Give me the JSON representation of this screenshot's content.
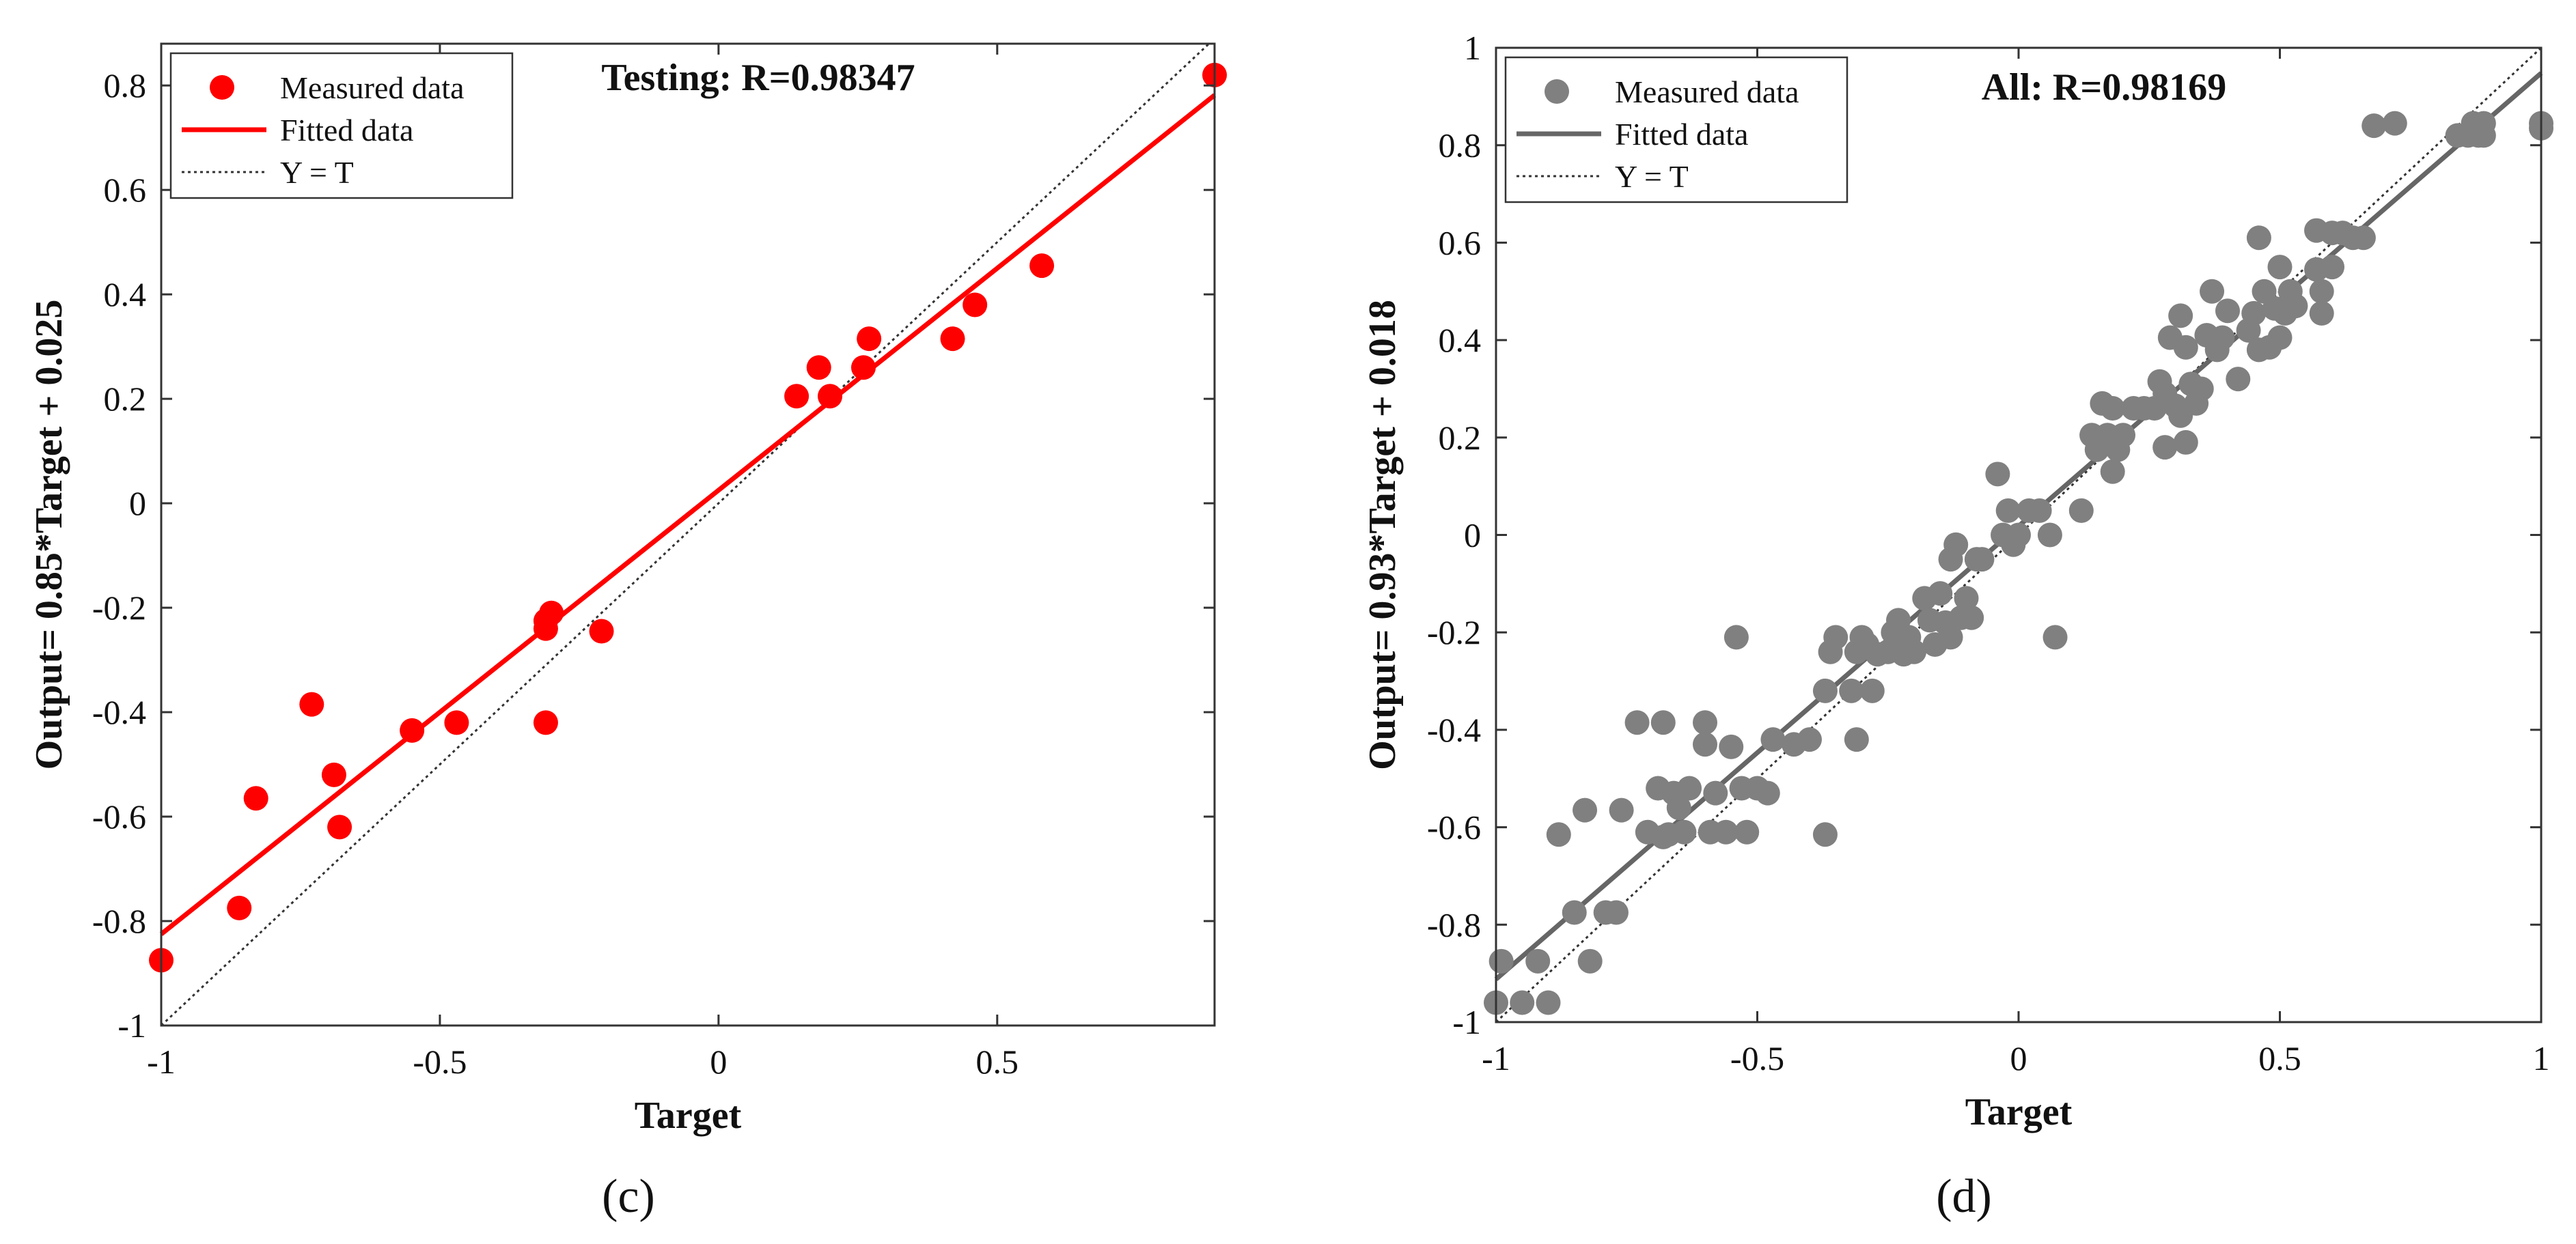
{
  "chart_data": [
    {
      "type": "scatter",
      "panel_label": "(c)",
      "title": "Testing: R=0.98347",
      "xlabel": "Target",
      "ylabel": "Output= 0.85*Target + 0.025",
      "xlim": [
        -1,
        0.89
      ],
      "ylim": [
        -1,
        0.88
      ],
      "xticks": [
        -1,
        -0.5,
        0,
        0.5
      ],
      "yticks": [
        -1,
        -0.8,
        -0.6,
        -0.4,
        -0.2,
        0,
        0.2,
        0.4,
        0.6,
        0.8
      ],
      "grid": false,
      "legend_position": "top-left",
      "colors": {
        "points": "#ff0000",
        "fit": "#ff0000",
        "identity": "#333333"
      },
      "legend": [
        "Measured data",
        "Fitted data",
        "Y = T"
      ],
      "fit": {
        "slope": 0.85,
        "intercept": 0.025
      },
      "points": [
        [
          -1.0,
          -0.875
        ],
        [
          -0.86,
          -0.775
        ],
        [
          -0.83,
          -0.565
        ],
        [
          -0.73,
          -0.385
        ],
        [
          -0.69,
          -0.52
        ],
        [
          -0.68,
          -0.62
        ],
        [
          -0.55,
          -0.435
        ],
        [
          -0.47,
          -0.42
        ],
        [
          -0.31,
          -0.24
        ],
        [
          -0.31,
          -0.225
        ],
        [
          -0.3,
          -0.21
        ],
        [
          -0.31,
          -0.42
        ],
        [
          -0.21,
          -0.245
        ],
        [
          0.14,
          0.205
        ],
        [
          0.18,
          0.26
        ],
        [
          0.2,
          0.205
        ],
        [
          0.26,
          0.26
        ],
        [
          0.27,
          0.315
        ],
        [
          0.42,
          0.315
        ],
        [
          0.46,
          0.38
        ],
        [
          0.58,
          0.455
        ],
        [
          0.89,
          0.82
        ]
      ]
    },
    {
      "type": "scatter",
      "panel_label": "(d)",
      "title": "All: R=0.98169",
      "xlabel": "Target",
      "ylabel": "Output= 0.93*Target + 0.018",
      "xlim": [
        -1,
        1
      ],
      "ylim": [
        -1,
        1
      ],
      "xticks": [
        -1,
        -0.5,
        0,
        0.5,
        1
      ],
      "yticks": [
        -1,
        -0.8,
        -0.6,
        -0.4,
        -0.2,
        0,
        0.2,
        0.4,
        0.6,
        0.8,
        1
      ],
      "grid": false,
      "legend_position": "top-left",
      "colors": {
        "points": "#808080",
        "fit": "#666666",
        "identity": "#333333"
      },
      "legend": [
        "Measured data",
        "Fitted data",
        "Y = T"
      ],
      "fit": {
        "slope": 0.93,
        "intercept": 0.018
      },
      "points": [
        [
          -1.0,
          -0.96
        ],
        [
          -0.99,
          -0.875
        ],
        [
          -0.95,
          -0.96
        ],
        [
          -0.92,
          -0.875
        ],
        [
          -0.9,
          -0.96
        ],
        [
          -0.88,
          -0.615
        ],
        [
          -0.85,
          -0.775
        ],
        [
          -0.83,
          -0.565
        ],
        [
          -0.82,
          -0.875
        ],
        [
          -0.79,
          -0.775
        ],
        [
          -0.77,
          -0.775
        ],
        [
          -0.76,
          -0.565
        ],
        [
          -0.73,
          -0.385
        ],
        [
          -0.71,
          -0.61
        ],
        [
          -0.69,
          -0.52
        ],
        [
          -0.68,
          -0.385
        ],
        [
          -0.68,
          -0.62
        ],
        [
          -0.67,
          -0.615
        ],
        [
          -0.66,
          -0.53
        ],
        [
          -0.65,
          -0.56
        ],
        [
          -0.64,
          -0.61
        ],
        [
          -0.63,
          -0.52
        ],
        [
          -0.6,
          -0.43
        ],
        [
          -0.6,
          -0.385
        ],
        [
          -0.59,
          -0.61
        ],
        [
          -0.58,
          -0.53
        ],
        [
          -0.56,
          -0.61
        ],
        [
          -0.55,
          -0.435
        ],
        [
          -0.54,
          -0.21
        ],
        [
          -0.53,
          -0.52
        ],
        [
          -0.52,
          -0.61
        ],
        [
          -0.5,
          -0.52
        ],
        [
          -0.48,
          -0.53
        ],
        [
          -0.47,
          -0.42
        ],
        [
          -0.43,
          -0.43
        ],
        [
          -0.4,
          -0.42
        ],
        [
          -0.37,
          -0.615
        ],
        [
          -0.37,
          -0.32
        ],
        [
          -0.36,
          -0.24
        ],
        [
          -0.35,
          -0.21
        ],
        [
          -0.32,
          -0.32
        ],
        [
          -0.31,
          -0.24
        ],
        [
          -0.31,
          -0.42
        ],
        [
          -0.3,
          -0.21
        ],
        [
          -0.29,
          -0.225
        ],
        [
          -0.28,
          -0.32
        ],
        [
          -0.27,
          -0.245
        ],
        [
          -0.25,
          -0.24
        ],
        [
          -0.24,
          -0.2
        ],
        [
          -0.23,
          -0.175
        ],
        [
          -0.22,
          -0.245
        ],
        [
          -0.21,
          -0.21
        ],
        [
          -0.2,
          -0.24
        ],
        [
          -0.18,
          -0.13
        ],
        [
          -0.17,
          -0.175
        ],
        [
          -0.16,
          -0.225
        ],
        [
          -0.15,
          -0.12
        ],
        [
          -0.14,
          -0.18
        ],
        [
          -0.13,
          -0.05
        ],
        [
          -0.13,
          -0.21
        ],
        [
          -0.12,
          -0.02
        ],
        [
          -0.11,
          -0.17
        ],
        [
          -0.1,
          -0.13
        ],
        [
          -0.09,
          -0.17
        ],
        [
          -0.08,
          -0.05
        ],
        [
          -0.07,
          -0.05
        ],
        [
          -0.04,
          0.125
        ],
        [
          -0.03,
          0.0
        ],
        [
          -0.02,
          0.05
        ],
        [
          -0.01,
          -0.02
        ],
        [
          0.0,
          0.0
        ],
        [
          0.02,
          0.05
        ],
        [
          0.04,
          0.05
        ],
        [
          0.06,
          0.0
        ],
        [
          0.07,
          -0.21
        ],
        [
          0.12,
          0.05
        ],
        [
          0.14,
          0.205
        ],
        [
          0.15,
          0.175
        ],
        [
          0.16,
          0.27
        ],
        [
          0.17,
          0.205
        ],
        [
          0.18,
          0.26
        ],
        [
          0.18,
          0.13
        ],
        [
          0.19,
          0.175
        ],
        [
          0.2,
          0.205
        ],
        [
          0.22,
          0.26
        ],
        [
          0.24,
          0.26
        ],
        [
          0.26,
          0.26
        ],
        [
          0.27,
          0.315
        ],
        [
          0.28,
          0.18
        ],
        [
          0.28,
          0.29
        ],
        [
          0.29,
          0.405
        ],
        [
          0.3,
          0.265
        ],
        [
          0.31,
          0.245
        ],
        [
          0.31,
          0.45
        ],
        [
          0.32,
          0.19
        ],
        [
          0.32,
          0.385
        ],
        [
          0.33,
          0.31
        ],
        [
          0.34,
          0.27
        ],
        [
          0.35,
          0.3
        ],
        [
          0.36,
          0.41
        ],
        [
          0.37,
          0.5
        ],
        [
          0.38,
          0.38
        ],
        [
          0.39,
          0.405
        ],
        [
          0.4,
          0.46
        ],
        [
          0.42,
          0.32
        ],
        [
          0.44,
          0.42
        ],
        [
          0.45,
          0.455
        ],
        [
          0.46,
          0.61
        ],
        [
          0.46,
          0.38
        ],
        [
          0.47,
          0.5
        ],
        [
          0.48,
          0.385
        ],
        [
          0.49,
          0.465
        ],
        [
          0.5,
          0.55
        ],
        [
          0.5,
          0.405
        ],
        [
          0.51,
          0.455
        ],
        [
          0.52,
          0.5
        ],
        [
          0.53,
          0.47
        ],
        [
          0.57,
          0.545
        ],
        [
          0.57,
          0.625
        ],
        [
          0.58,
          0.455
        ],
        [
          0.58,
          0.5
        ],
        [
          0.6,
          0.55
        ],
        [
          0.6,
          0.62
        ],
        [
          0.62,
          0.62
        ],
        [
          0.64,
          0.61
        ],
        [
          0.66,
          0.61
        ],
        [
          0.68,
          0.84
        ],
        [
          0.72,
          0.845
        ],
        [
          0.84,
          0.82
        ],
        [
          0.86,
          0.82
        ],
        [
          0.87,
          0.845
        ],
        [
          0.88,
          0.82
        ],
        [
          0.89,
          0.82
        ],
        [
          0.89,
          0.845
        ],
        [
          1.0,
          0.845
        ],
        [
          1.0,
          0.835
        ]
      ]
    }
  ]
}
